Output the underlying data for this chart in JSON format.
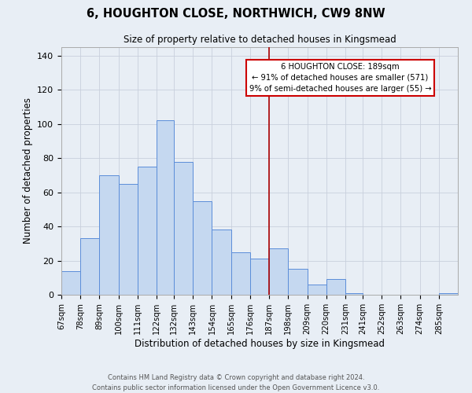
{
  "title": "6, HOUGHTON CLOSE, NORTHWICH, CW9 8NW",
  "subtitle": "Size of property relative to detached houses in Kingsmead",
  "xlabel": "Distribution of detached houses by size in Kingsmead",
  "ylabel": "Number of detached properties",
  "bin_labels": [
    "67sqm",
    "78sqm",
    "89sqm",
    "100sqm",
    "111sqm",
    "122sqm",
    "132sqm",
    "143sqm",
    "154sqm",
    "165sqm",
    "176sqm",
    "187sqm",
    "198sqm",
    "209sqm",
    "220sqm",
    "231sqm",
    "241sqm",
    "252sqm",
    "263sqm",
    "274sqm",
    "285sqm"
  ],
  "bar_heights": [
    14,
    33,
    70,
    65,
    75,
    102,
    78,
    55,
    38,
    25,
    21,
    27,
    15,
    6,
    9,
    1,
    0,
    0,
    0,
    0,
    1
  ],
  "bar_color": "#c5d8f0",
  "bar_edge_color": "#5b8dd9",
  "property_line_x": 187,
  "bin_edges": [
    67,
    78,
    89,
    100,
    111,
    122,
    132,
    143,
    154,
    165,
    176,
    187,
    198,
    209,
    220,
    231,
    241,
    252,
    263,
    274,
    285,
    296
  ],
  "annotation_title": "6 HOUGHTON CLOSE: 189sqm",
  "annotation_line1": "← 91% of detached houses are smaller (571)",
  "annotation_line2": "9% of semi-detached houses are larger (55) →",
  "annotation_box_color": "#ffffff",
  "annotation_box_edge_color": "#cc0000",
  "vline_color": "#aa0000",
  "ylim": [
    0,
    145
  ],
  "yticks": [
    0,
    20,
    40,
    60,
    80,
    100,
    120,
    140
  ],
  "grid_color": "#c8d0dc",
  "bg_color": "#e8eef5",
  "footer_line1": "Contains HM Land Registry data © Crown copyright and database right 2024.",
  "footer_line2": "Contains public sector information licensed under the Open Government Licence v3.0."
}
